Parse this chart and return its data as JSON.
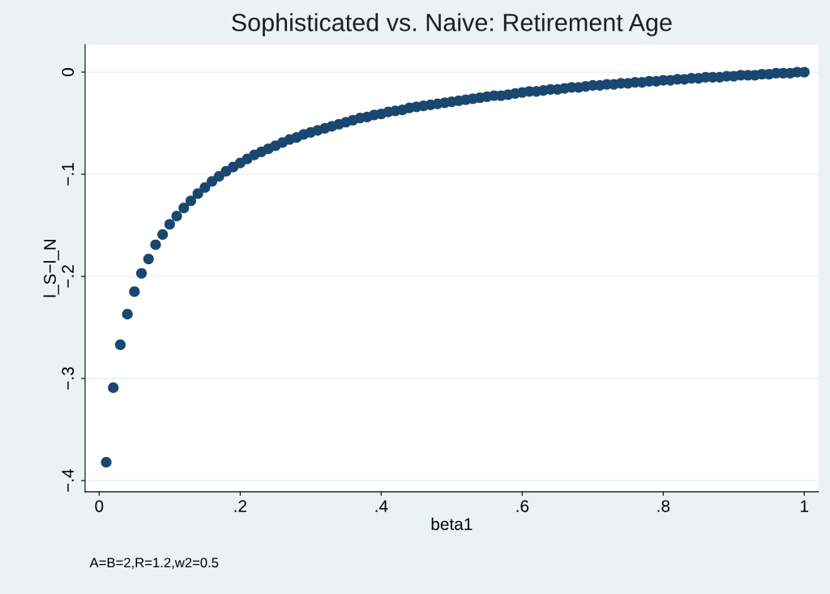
{
  "chart_data": {
    "type": "scatter",
    "title": "Sophisticated vs. Naive: Retirement Age",
    "xlabel": "beta1",
    "ylabel": "l_S−l_N",
    "annotations": [
      "A=B=2,R=1.2,w2=0.5"
    ],
    "x": [
      0.01,
      0.02,
      0.03,
      0.04,
      0.05,
      0.06,
      0.07,
      0.08,
      0.09,
      0.1,
      0.11,
      0.12,
      0.13,
      0.14,
      0.15,
      0.16,
      0.17,
      0.18,
      0.19,
      0.2,
      0.21,
      0.22,
      0.23,
      0.24,
      0.25,
      0.26,
      0.27,
      0.28,
      0.29,
      0.3,
      0.31,
      0.32,
      0.33,
      0.34,
      0.35,
      0.36,
      0.37,
      0.38,
      0.39,
      0.4,
      0.41,
      0.42,
      0.43,
      0.44,
      0.45,
      0.46,
      0.47,
      0.48,
      0.49,
      0.5,
      0.51,
      0.52,
      0.53,
      0.54,
      0.55,
      0.56,
      0.57,
      0.58,
      0.59,
      0.6,
      0.61,
      0.62,
      0.63,
      0.64,
      0.65,
      0.66,
      0.67,
      0.68,
      0.69,
      0.7,
      0.71,
      0.72,
      0.73,
      0.74,
      0.75,
      0.76,
      0.77,
      0.78,
      0.79,
      0.8,
      0.81,
      0.82,
      0.83,
      0.84,
      0.85,
      0.86,
      0.87,
      0.88,
      0.89,
      0.9,
      0.91,
      0.92,
      0.93,
      0.94,
      0.95,
      0.96,
      0.97,
      0.98,
      0.99,
      1.0
    ],
    "series": [
      {
        "color": "#1a476f",
        "values": [
          -0.382,
          -0.309,
          -0.267,
          -0.237,
          -0.215,
          -0.197,
          -0.183,
          -0.169,
          -0.159,
          -0.149,
          -0.141,
          -0.133,
          -0.126,
          -0.119,
          -0.113,
          -0.107,
          -0.102,
          -0.097,
          -0.093,
          -0.089,
          -0.085,
          -0.081,
          -0.078,
          -0.075,
          -0.072,
          -0.069,
          -0.066,
          -0.064,
          -0.061,
          -0.059,
          -0.057,
          -0.055,
          -0.053,
          -0.051,
          -0.049,
          -0.047,
          -0.045,
          -0.044,
          -0.042,
          -0.041,
          -0.039,
          -0.038,
          -0.037,
          -0.035,
          -0.034,
          -0.033,
          -0.032,
          -0.031,
          -0.03,
          -0.029,
          -0.028,
          -0.027,
          -0.026,
          -0.025,
          -0.024,
          -0.023,
          -0.023,
          -0.022,
          -0.021,
          -0.02,
          -0.019,
          -0.019,
          -0.018,
          -0.017,
          -0.017,
          -0.016,
          -0.015,
          -0.015,
          -0.014,
          -0.013,
          -0.013,
          -0.012,
          -0.012,
          -0.011,
          -0.011,
          -0.01,
          -0.01,
          -0.009,
          -0.009,
          -0.008,
          -0.008,
          -0.007,
          -0.007,
          -0.006,
          -0.006,
          -0.005,
          -0.005,
          -0.005,
          -0.004,
          -0.004,
          -0.003,
          -0.003,
          -0.003,
          -0.002,
          -0.002,
          -0.001,
          -0.001,
          -0.001,
          0,
          0
        ]
      }
    ],
    "marker": "circle",
    "grid": "y",
    "legend": false,
    "xlim": [
      -0.02,
      1.02
    ],
    "xticks": [
      {
        "value": 0,
        "label": "0"
      },
      {
        "value": 0.2,
        "label": ".2"
      },
      {
        "value": 0.4,
        "label": ".4"
      },
      {
        "value": 0.6,
        "label": ".6"
      },
      {
        "value": 0.8,
        "label": ".8"
      },
      {
        "value": 1,
        "label": "1"
      }
    ],
    "ylim": [
      -0.411,
      0.027
    ],
    "yticks": [
      {
        "value": -0.4,
        "label": "−.4"
      },
      {
        "value": -0.3,
        "label": "−.3"
      },
      {
        "value": -0.2,
        "label": "−.2"
      },
      {
        "value": -0.1,
        "label": "−.1"
      },
      {
        "value": 0,
        "label": "0"
      }
    ]
  }
}
